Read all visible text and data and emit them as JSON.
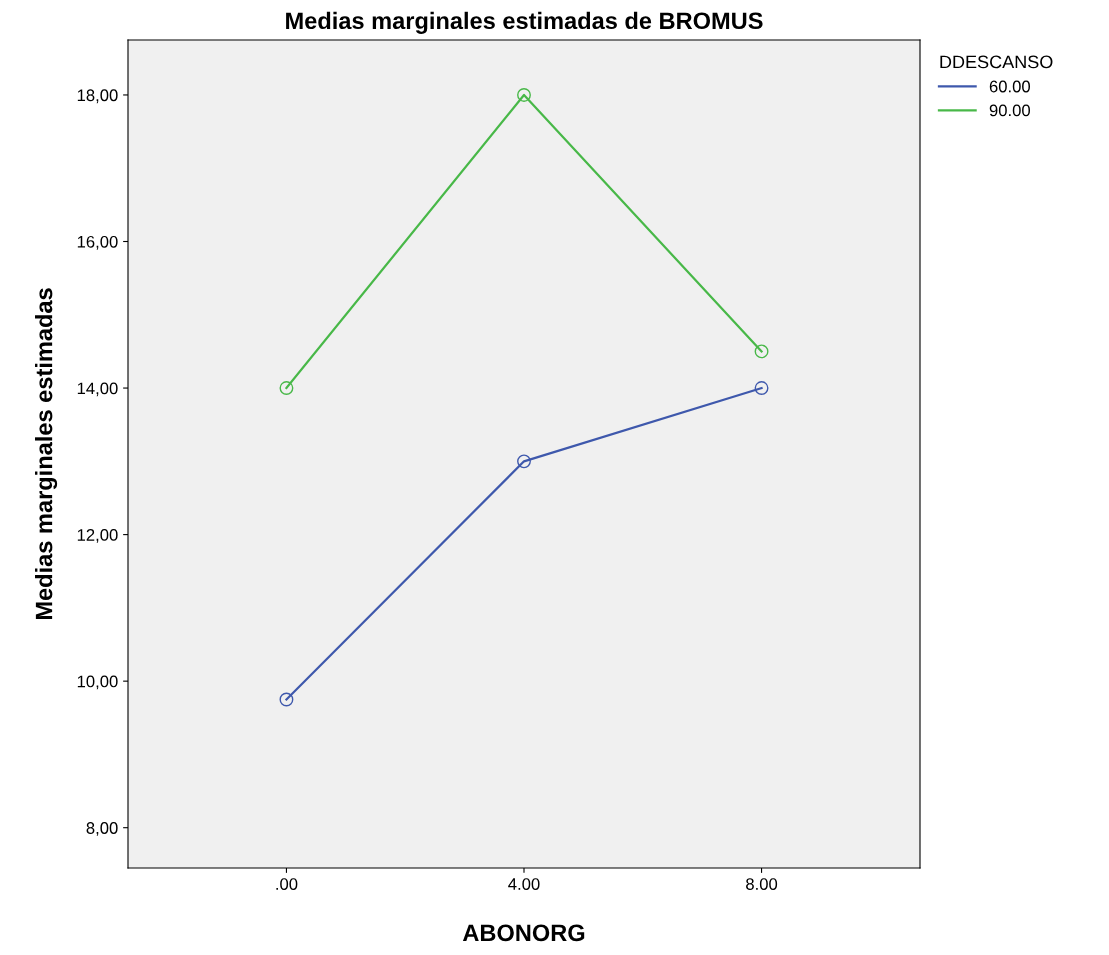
{
  "chart_data": {
    "type": "line",
    "title": "Medias marginales estimadas de BROMUS",
    "xlabel": "ABONORG",
    "ylabel": "Medias marginales estimadas",
    "legend_title": "DDESCANSO",
    "categories": [
      ".00",
      "4.00",
      "8.00"
    ],
    "series": [
      {
        "name": "60.00",
        "color": "#3e58ac",
        "values": [
          9.75,
          13.0,
          14.0
        ]
      },
      {
        "name": "90.00",
        "color": "#48b848",
        "values": [
          14.0,
          18.0,
          14.5
        ]
      }
    ],
    "ylim": [
      7.45,
      18.75
    ],
    "yticks": [
      {
        "value": 8,
        "label": "8,00"
      },
      {
        "value": 10,
        "label": "10,00"
      },
      {
        "value": 12,
        "label": "12,00"
      },
      {
        "value": 14,
        "label": "14,00"
      },
      {
        "value": 16,
        "label": "16,00"
      },
      {
        "value": 18,
        "label": "18,00"
      }
    ],
    "marker": "circle",
    "line_style": "solid",
    "grid": false,
    "legend": "top right"
  }
}
